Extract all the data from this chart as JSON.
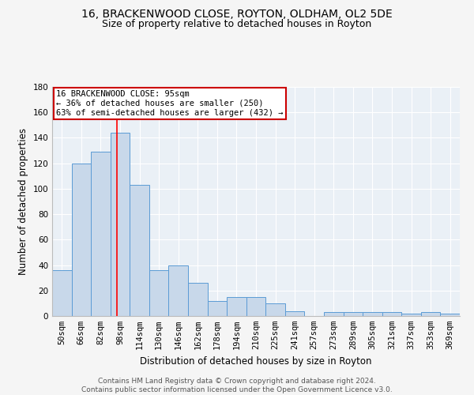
{
  "title1": "16, BRACKENWOOD CLOSE, ROYTON, OLDHAM, OL2 5DE",
  "title2": "Size of property relative to detached houses in Royton",
  "xlabel": "Distribution of detached houses by size in Royton",
  "ylabel": "Number of detached properties",
  "bin_labels": [
    "50sqm",
    "66sqm",
    "82sqm",
    "98sqm",
    "114sqm",
    "130sqm",
    "146sqm",
    "162sqm",
    "178sqm",
    "194sqm",
    "210sqm",
    "225sqm",
    "241sqm",
    "257sqm",
    "273sqm",
    "289sqm",
    "305sqm",
    "321sqm",
    "337sqm",
    "353sqm",
    "369sqm"
  ],
  "bar_heights": [
    36,
    120,
    129,
    144,
    103,
    36,
    40,
    26,
    12,
    15,
    15,
    10,
    4,
    0,
    3,
    3,
    3,
    3,
    2,
    3,
    2
  ],
  "bar_color": "#c8d8ea",
  "bar_edge_color": "#5b9bd5",
  "red_line_x": 2.82,
  "annotation_text": "16 BRACKENWOOD CLOSE: 95sqm\n← 36% of detached houses are smaller (250)\n63% of semi-detached houses are larger (432) →",
  "annotation_box_color": "#ffffff",
  "annotation_box_edge_color": "#cc0000",
  "ylim": [
    0,
    180
  ],
  "yticks": [
    0,
    20,
    40,
    60,
    80,
    100,
    120,
    140,
    160,
    180
  ],
  "background_color": "#eaf0f6",
  "grid_color": "#ffffff",
  "footnote": "Contains HM Land Registry data © Crown copyright and database right 2024.\nContains public sector information licensed under the Open Government Licence v3.0.",
  "title1_fontsize": 10,
  "title2_fontsize": 9,
  "xlabel_fontsize": 8.5,
  "ylabel_fontsize": 8.5,
  "tick_fontsize": 7.5,
  "annotation_fontsize": 7.5,
  "footnote_fontsize": 6.5
}
